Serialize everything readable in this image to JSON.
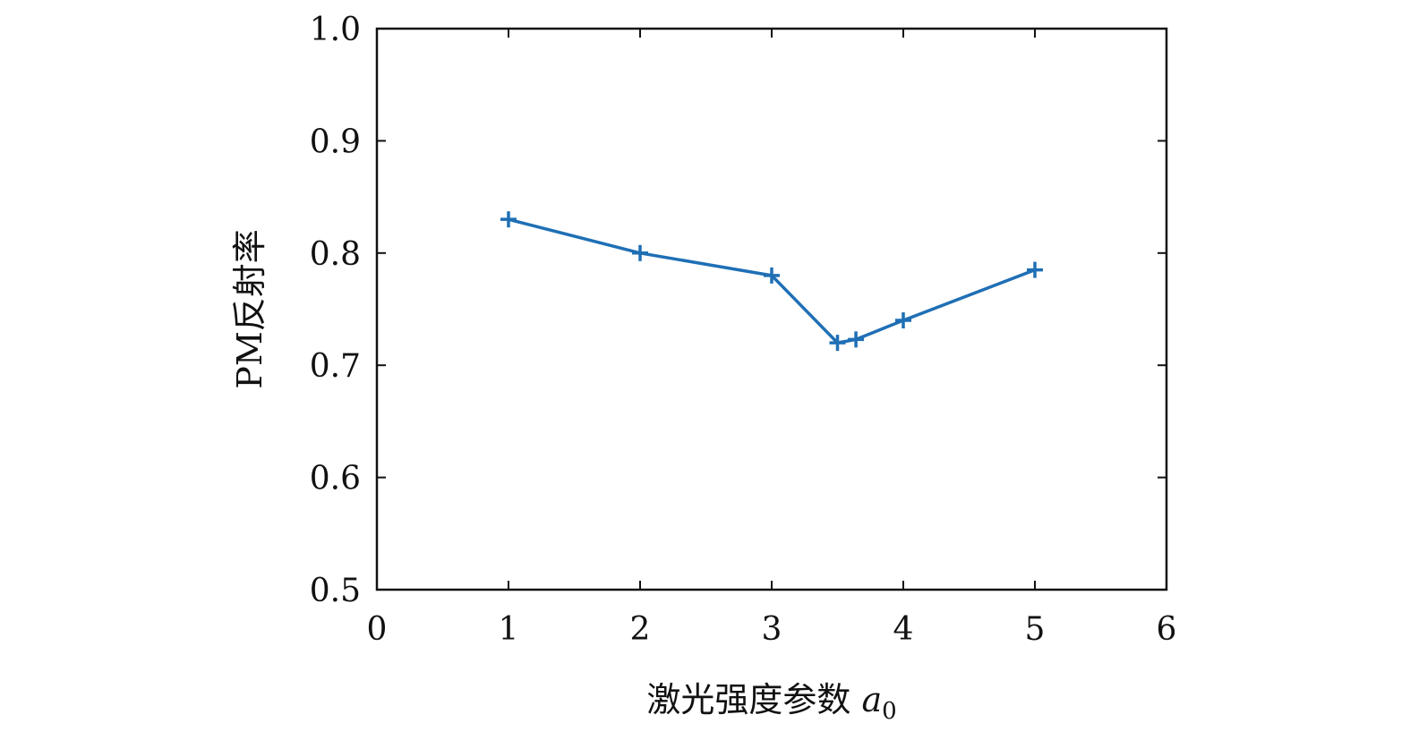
{
  "chart_data": {
    "type": "line",
    "xlabel": "激光强度参数 ",
    "xlabel_var": "a",
    "xlabel_sub": "0",
    "ylabel": "PM反射率",
    "xlim": [
      0,
      6
    ],
    "ylim": [
      0.5,
      1.0
    ],
    "x_ticks": [
      "0",
      "1",
      "2",
      "3",
      "4",
      "5",
      "6"
    ],
    "y_ticks": [
      "0.5",
      "0.6",
      "0.7",
      "0.8",
      "0.9",
      "1.0"
    ],
    "series": [
      {
        "marker": "plus",
        "color": "#1f6fb5",
        "points": [
          {
            "x": 1.0,
            "y": 0.83
          },
          {
            "x": 2.0,
            "y": 0.8
          },
          {
            "x": 3.0,
            "y": 0.78
          },
          {
            "x": 3.5,
            "y": 0.72
          },
          {
            "x": 3.64,
            "y": 0.723
          },
          {
            "x": 4.0,
            "y": 0.74
          },
          {
            "x": 5.0,
            "y": 0.785
          }
        ]
      }
    ],
    "grid": false,
    "legend": "none"
  }
}
